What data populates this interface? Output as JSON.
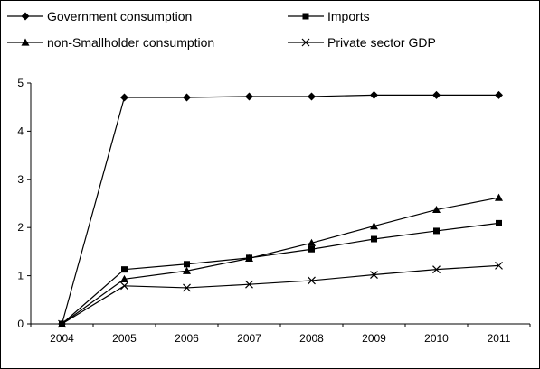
{
  "chart_data": {
    "type": "line",
    "title": "",
    "xlabel": "",
    "ylabel": "",
    "categories": [
      "2004",
      "2005",
      "2006",
      "2007",
      "2008",
      "2009",
      "2010",
      "2011"
    ],
    "ylim": [
      0,
      5
    ],
    "yticks": [
      "0",
      "1",
      "2",
      "3",
      "4",
      "5"
    ],
    "grid": false,
    "legend_position": "top",
    "series": [
      {
        "name": "Government consumption",
        "marker": "diamond",
        "values": [
          0,
          4.7,
          4.7,
          4.72,
          4.72,
          4.75,
          4.75,
          4.75
        ]
      },
      {
        "name": "Imports",
        "marker": "square",
        "values": [
          0,
          1.13,
          1.24,
          1.37,
          1.55,
          1.76,
          1.93,
          2.09
        ]
      },
      {
        "name": "non-Smallholder consumption",
        "marker": "triangle",
        "values": [
          0,
          0.93,
          1.1,
          1.36,
          1.68,
          2.03,
          2.37,
          2.62
        ]
      },
      {
        "name": "Private sector GDP",
        "marker": "x",
        "values": [
          0,
          0.79,
          0.75,
          0.82,
          0.9,
          1.02,
          1.13,
          1.21
        ]
      }
    ]
  }
}
